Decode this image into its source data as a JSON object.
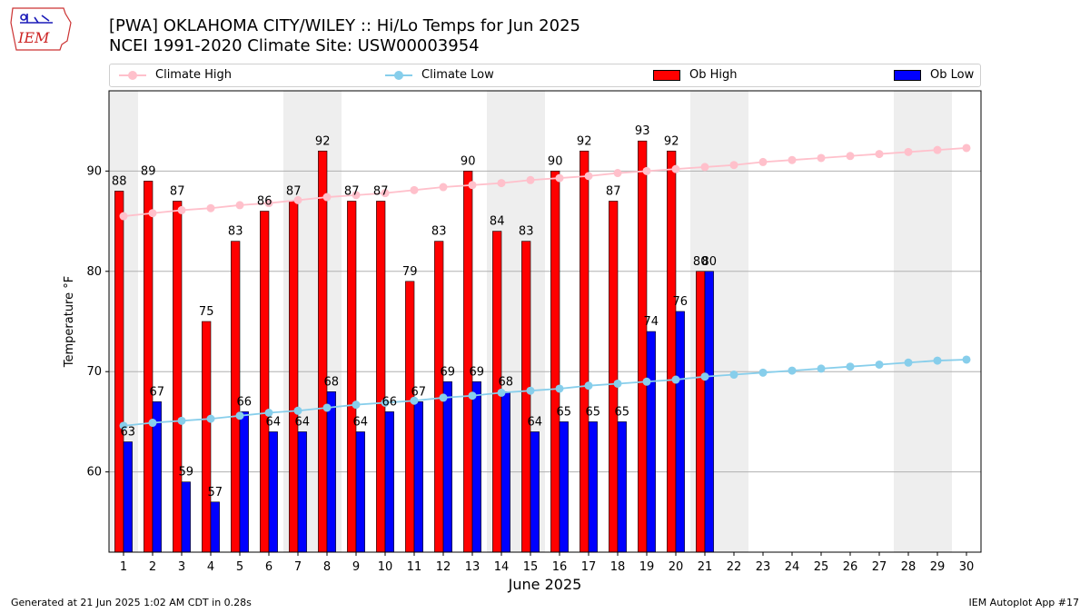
{
  "header": {
    "title_line1": "[PWA] OKLAHOMA CITY/WILEY :: Hi/Lo Temps for Jun 2025",
    "title_line2": "NCEI 1991-2020 Climate Site: USW00003954"
  },
  "logo_text": "IEM",
  "footer": {
    "left": "Generated at 21 Jun 2025 1:02 AM CDT in 0.28s",
    "right": "IEM Autoplot App #17"
  },
  "legend": {
    "climate_high": "Climate High",
    "climate_low": "Climate Low",
    "ob_high": "Ob High",
    "ob_low": "Ob Low"
  },
  "chart_data": {
    "type": "bar",
    "xlabel": "June 2025",
    "ylabel": "Temperature °F",
    "ylim": [
      52,
      98
    ],
    "yticks": [
      60,
      70,
      80,
      90
    ],
    "xticks": [
      1,
      2,
      3,
      4,
      5,
      6,
      7,
      8,
      9,
      10,
      11,
      12,
      13,
      14,
      15,
      16,
      17,
      18,
      19,
      20,
      21,
      22,
      23,
      24,
      25,
      26,
      27,
      28,
      29,
      30
    ],
    "weekend_shaded_days": [
      1,
      7,
      8,
      14,
      15,
      21,
      22,
      28,
      29
    ],
    "grid": "horizontal",
    "colors": {
      "ob_high": "#ff0000",
      "ob_low": "#0000ff",
      "climate_high": "#ffc0cb",
      "climate_low": "#87ceeb",
      "weekend": "#eeeeee"
    },
    "series": [
      {
        "name": "Ob High",
        "days": [
          1,
          2,
          3,
          4,
          5,
          6,
          7,
          8,
          9,
          10,
          11,
          12,
          13,
          14,
          15,
          16,
          17,
          18,
          19,
          20,
          21
        ],
        "values": [
          88,
          89,
          87,
          75,
          83,
          86,
          87,
          92,
          87,
          87,
          79,
          83,
          90,
          84,
          83,
          90,
          92,
          87,
          93,
          92,
          80
        ]
      },
      {
        "name": "Ob Low",
        "days": [
          1,
          2,
          3,
          4,
          5,
          6,
          7,
          8,
          9,
          10,
          11,
          12,
          13,
          14,
          15,
          16,
          17,
          18,
          19,
          20,
          21
        ],
        "values": [
          63,
          67,
          59,
          57,
          66,
          64,
          64,
          68,
          64,
          66,
          67,
          69,
          69,
          68,
          64,
          65,
          65,
          65,
          74,
          76,
          80
        ]
      },
      {
        "name": "Climate High",
        "days": [
          1,
          2,
          3,
          4,
          5,
          6,
          7,
          8,
          9,
          10,
          11,
          12,
          13,
          14,
          15,
          16,
          17,
          18,
          19,
          20,
          21,
          22,
          23,
          24,
          25,
          26,
          27,
          28,
          29,
          30
        ],
        "values": [
          85.5,
          85.8,
          86.1,
          86.3,
          86.6,
          86.8,
          87.1,
          87.4,
          87.6,
          87.8,
          88.1,
          88.4,
          88.6,
          88.8,
          89.1,
          89.3,
          89.5,
          89.8,
          90.0,
          90.2,
          90.4,
          90.6,
          90.9,
          91.1,
          91.3,
          91.5,
          91.7,
          91.9,
          92.1,
          92.3
        ]
      },
      {
        "name": "Climate Low",
        "days": [
          1,
          2,
          3,
          4,
          5,
          6,
          7,
          8,
          9,
          10,
          11,
          12,
          13,
          14,
          15,
          16,
          17,
          18,
          19,
          20,
          21,
          22,
          23,
          24,
          25,
          26,
          27,
          28,
          29,
          30
        ],
        "values": [
          64.6,
          64.9,
          65.1,
          65.3,
          65.6,
          65.9,
          66.1,
          66.4,
          66.7,
          66.9,
          67.1,
          67.4,
          67.6,
          67.9,
          68.1,
          68.3,
          68.6,
          68.8,
          69.0,
          69.2,
          69.5,
          69.7,
          69.9,
          70.1,
          70.3,
          70.5,
          70.7,
          70.9,
          71.1,
          71.2
        ]
      }
    ]
  }
}
